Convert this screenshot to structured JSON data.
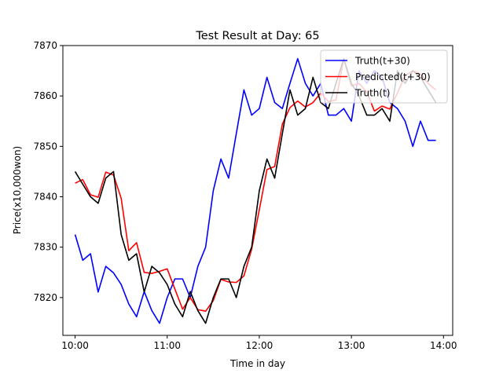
{
  "chart_data": {
    "type": "line",
    "title": "Test Result at Day: 65",
    "xlabel": "Time in day",
    "ylabel": "Price(x10,000won)",
    "xlim": [
      9.867,
      14.1
    ],
    "ylim": [
      7812.5,
      7870
    ],
    "xticks": [
      {
        "value": 10,
        "label": "10:00"
      },
      {
        "value": 11,
        "label": "11:00"
      },
      {
        "value": 12,
        "label": "12:00"
      },
      {
        "value": 13,
        "label": "13:00"
      },
      {
        "value": 14,
        "label": "14:00"
      }
    ],
    "yticks": [
      7820,
      7830,
      7840,
      7850,
      7860,
      7870
    ],
    "legend_position": "top-right",
    "grid": false,
    "series": [
      {
        "name": "Truth(t+30)",
        "color": "#0000ff",
        "x": [
          10.0,
          10.083,
          10.167,
          10.25,
          10.333,
          10.417,
          10.5,
          10.583,
          10.667,
          10.75,
          10.833,
          10.917,
          11.0,
          11.083,
          11.167,
          11.25,
          11.333,
          11.417,
          11.5,
          11.583,
          11.667,
          11.75,
          11.833,
          11.917,
          12.0,
          12.083,
          12.167,
          12.25,
          12.333,
          12.417,
          12.5,
          12.583,
          12.667,
          12.75,
          12.833,
          12.917,
          13.0,
          13.083,
          13.167,
          13.25,
          13.333,
          13.417,
          13.5,
          13.583,
          13.667,
          13.75,
          13.833,
          13.917
        ],
        "y": [
          7832.5,
          7827.4,
          7828.7,
          7821.1,
          7826.2,
          7824.9,
          7822.6,
          7818.7,
          7816.2,
          7821.2,
          7817.4,
          7814.9,
          7820.0,
          7823.7,
          7823.7,
          7820.0,
          7826.2,
          7830.0,
          7841.2,
          7847.5,
          7843.7,
          7852.5,
          7861.2,
          7856.2,
          7857.5,
          7863.7,
          7858.7,
          7857.5,
          7862.5,
          7867.4,
          7862.5,
          7860.0,
          7862.5,
          7856.2,
          7856.2,
          7857.5,
          7855.0,
          7865.0,
          7862.5,
          7865.0,
          7863.7,
          7858.7,
          7857.5,
          7855.0,
          7850.0,
          7855.0,
          7851.2,
          7851.2
        ]
      },
      {
        "name": "Predicted(t+30)",
        "color": "#ff0000",
        "x": [
          10.0,
          10.083,
          10.167,
          10.25,
          10.333,
          10.417,
          10.5,
          10.583,
          10.667,
          10.75,
          10.833,
          10.917,
          11.0,
          11.083,
          11.167,
          11.25,
          11.333,
          11.417,
          11.5,
          11.583,
          11.667,
          11.75,
          11.833,
          11.917,
          12.0,
          12.083,
          12.167,
          12.25,
          12.333,
          12.417,
          12.5,
          12.583,
          12.667,
          12.75,
          12.833,
          12.917,
          13.0,
          13.083,
          13.167,
          13.25,
          13.333,
          13.417,
          13.5,
          13.583,
          13.667,
          13.75,
          13.833,
          13.917
        ],
        "y": [
          7842.7,
          7843.4,
          7840.4,
          7839.9,
          7844.9,
          7844.3,
          7839.7,
          7829.3,
          7830.9,
          7825.0,
          7824.8,
          7825.2,
          7825.7,
          7821.7,
          7817.7,
          7820.0,
          7817.6,
          7817.3,
          7819.4,
          7823.6,
          7823.1,
          7823.0,
          7824.3,
          7829.6,
          7837.4,
          7845.4,
          7846.0,
          7854.4,
          7857.7,
          7859.0,
          7857.8,
          7858.7,
          7860.6,
          7858.9,
          7859.2,
          7867.4,
          7862.0,
          7862.5,
          7860.8,
          7857.0,
          7858.0,
          7857.4,
          7860.6,
          7864.0,
          7865.0,
          7864.4,
          7862.5,
          7861.2
        ]
      },
      {
        "name": "Truth(t)",
        "color": "#000000",
        "x": [
          10.0,
          10.083,
          10.167,
          10.25,
          10.333,
          10.417,
          10.5,
          10.583,
          10.667,
          10.75,
          10.833,
          10.917,
          11.0,
          11.083,
          11.167,
          11.25,
          11.333,
          11.417,
          11.5,
          11.583,
          11.667,
          11.75,
          11.833,
          11.917,
          12.0,
          12.083,
          12.167,
          12.25,
          12.333,
          12.417,
          12.5,
          12.583,
          12.667,
          12.75,
          12.833,
          12.917,
          13.0,
          13.083,
          13.167,
          13.25,
          13.333,
          13.417,
          13.5,
          13.583,
          13.667,
          13.75,
          13.833,
          13.917
        ],
        "y": [
          7845.0,
          7842.5,
          7840.0,
          7838.7,
          7843.7,
          7845.0,
          7832.5,
          7827.4,
          7828.7,
          7821.1,
          7826.2,
          7824.9,
          7822.6,
          7818.7,
          7816.2,
          7821.2,
          7817.4,
          7814.9,
          7820.0,
          7823.7,
          7823.7,
          7820.0,
          7826.2,
          7830.0,
          7841.2,
          7847.5,
          7843.7,
          7852.5,
          7861.2,
          7856.2,
          7857.5,
          7863.7,
          7858.7,
          7857.5,
          7862.5,
          7867.4,
          7862.5,
          7860.0,
          7856.2,
          7856.2,
          7857.5,
          7855.0,
          7865.0,
          7862.5,
          7865.0,
          7863.7,
          7861.2,
          7858.7
        ]
      }
    ]
  }
}
